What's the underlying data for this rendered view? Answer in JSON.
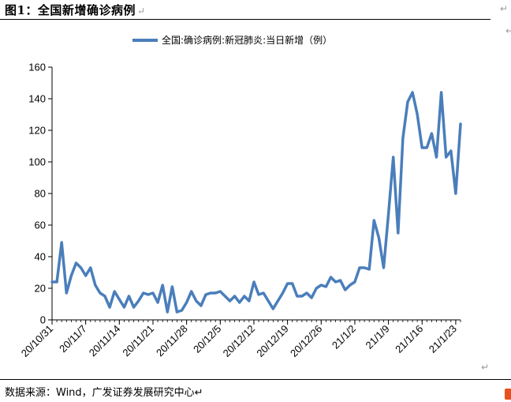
{
  "header": {
    "title": "图1：全国新增确诊病例",
    "return_mark": "↵"
  },
  "footer": {
    "source": "数据来源：Wind，广发证券发展研究中心↵"
  },
  "side_marks": [
    "↵",
    "↵",
    "↵"
  ],
  "chart_data": {
    "type": "line",
    "title": "",
    "xlabel": "",
    "ylabel": "",
    "ylim": [
      0,
      160
    ],
    "yticks": [
      0,
      20,
      40,
      60,
      80,
      100,
      120,
      140,
      160
    ],
    "grid": false,
    "legend_position": "top-center",
    "x_tick_labels": [
      "20/10/31",
      "20/11/7",
      "20/11/14",
      "20/11/21",
      "20/11/28",
      "20/12/5",
      "20/12/12",
      "20/12/19",
      "20/12/26",
      "21/1/2",
      "21/1/9",
      "21/1/16",
      "21/1/23"
    ],
    "series": [
      {
        "name": "全国:确诊病例:新冠肺炎:当日新增（例）",
        "color": "#4a7ebb",
        "values": [
          24,
          24,
          49,
          17,
          28,
          36,
          33,
          28,
          33,
          22,
          17,
          15,
          8,
          18,
          13,
          8,
          15,
          8,
          12,
          17,
          16,
          17,
          11,
          22,
          5,
          21,
          5,
          6,
          11,
          18,
          12,
          9,
          16,
          17,
          17,
          18,
          15,
          12,
          15,
          11,
          15,
          12,
          24,
          16,
          17,
          12,
          7,
          12,
          17,
          23,
          23,
          15,
          15,
          17,
          14,
          20,
          22,
          21,
          27,
          24,
          25,
          19,
          22,
          24,
          33,
          33,
          32,
          63,
          52,
          33,
          67,
          103,
          55,
          115,
          138,
          144,
          130,
          109,
          109,
          118,
          103,
          144,
          103,
          107,
          80,
          124
        ]
      }
    ]
  }
}
